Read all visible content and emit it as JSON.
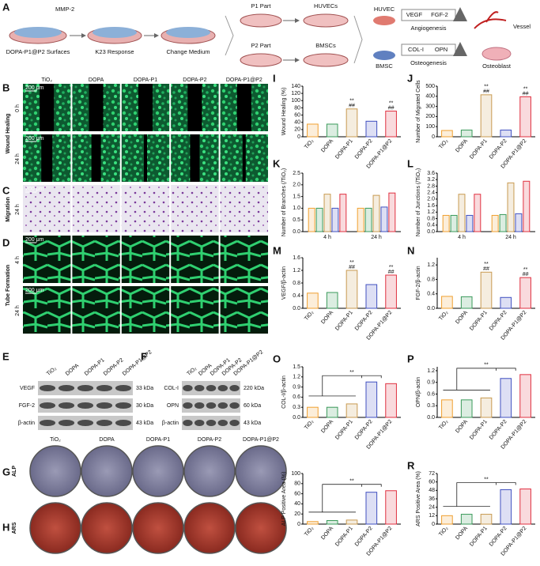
{
  "panel_letters": [
    "A",
    "B",
    "C",
    "D",
    "E",
    "F",
    "G",
    "H",
    "I",
    "J",
    "K",
    "L",
    "M",
    "N",
    "O",
    "P",
    "Q",
    "R"
  ],
  "schematic": {
    "enzyme": "MMP-2",
    "step1": "DOPA-P1@P2 Surfaces",
    "step2": "K23 Response",
    "step3": "Change Medium",
    "part1": "P1 Part",
    "part2": "P2 Part",
    "cells1": "HUVECs",
    "cells2": "BMSCs",
    "cell_a": "HUVEC",
    "factor_a1": "VEGF",
    "factor_a2": "FGF-2",
    "process_a": "Angiogenesis",
    "result_a": "Vessel",
    "cell_b": "BMSC",
    "factor_b1": "COL-I",
    "factor_b2": "OPN",
    "process_b": "Osteogenesis",
    "result_b": "Osteoblast"
  },
  "groups": [
    "TiO₂",
    "DOPA",
    "DOPA-P1",
    "DOPA-P2",
    "DOPA-P1@P2"
  ],
  "images": {
    "scale_bar": "200 μm",
    "sections": [
      {
        "label": "Wound Healing",
        "rows": [
          "0 h",
          "24 h"
        ]
      },
      {
        "label": "Migration",
        "rows": [
          "24 h"
        ]
      },
      {
        "label": "Tube Formation",
        "rows": [
          "4 h",
          "24 h"
        ]
      }
    ]
  },
  "blots": [
    {
      "rows": [
        {
          "name": "VEGF",
          "size": "33 kDa"
        },
        {
          "name": "FGF-2",
          "size": "30 kDa"
        },
        {
          "name": "β-actin",
          "size": "43 kDa"
        }
      ]
    },
    {
      "rows": [
        {
          "name": "COL-I",
          "size": "220 kDa"
        },
        {
          "name": "OPN",
          "size": "60 kDa"
        },
        {
          "name": "β-actin",
          "size": "43 kDa"
        }
      ]
    }
  ],
  "plates": {
    "rows": [
      "ALP",
      "ARS"
    ]
  },
  "colors": [
    "#f0a030",
    "#3a9a5a",
    "#c89a50",
    "#4050c0",
    "#e03040"
  ],
  "charts": [
    {
      "type": "bar",
      "ylabel": "Wound Healing (%)",
      "ylim": [
        0,
        140
      ],
      "yticks": [
        0,
        20,
        40,
        60,
        80,
        100,
        120,
        140
      ],
      "values": [
        35,
        35,
        77,
        43,
        71
      ],
      "bar_labels": [
        null,
        null,
        [
          "**",
          "##"
        ],
        null,
        [
          "**",
          "##"
        ]
      ]
    },
    {
      "type": "bar",
      "ylabel": "Number of Migrated Cells",
      "ylim": [
        0,
        500
      ],
      "yticks": [
        0,
        100,
        200,
        300,
        400,
        500
      ],
      "values": [
        62,
        66,
        415,
        66,
        395
      ],
      "bar_labels": [
        null,
        null,
        [
          "**",
          "##"
        ],
        null,
        [
          "**",
          "##"
        ]
      ]
    },
    {
      "type": "grouped",
      "ylabel": "Number of Branches (/TiO₂)",
      "ylim": [
        0,
        2.5
      ],
      "yticks": [
        {
          "value": 0,
          "label": "0.0"
        },
        0.5,
        {
          "value": 1,
          "label": "1.0"
        },
        1.5,
        {
          "value": 2,
          "label": "2.0"
        },
        2.5
      ],
      "categories": [
        "4 h",
        "24 h"
      ],
      "series": [
        {
          "values": [
            1.0,
            1.0
          ]
        },
        {
          "values": [
            1.0,
            1.0
          ]
        },
        {
          "values": [
            1.6,
            1.55
          ]
        },
        {
          "values": [
            1.0,
            1.05
          ]
        },
        {
          "values": [
            1.6,
            1.65
          ]
        }
      ]
    },
    {
      "type": "grouped",
      "ylabel": "Number of Junctions (/TiO₂)",
      "ylim": [
        0,
        3.6
      ],
      "yticks": [
        {
          "value": 0,
          "label": "0.0"
        },
        0.4,
        0.8,
        1.2,
        1.6,
        {
          "value": 2,
          "label": "2.0"
        },
        2.4,
        2.8,
        3.2,
        3.6
      ],
      "categories": [
        "4 h",
        "24 h"
      ],
      "series": [
        {
          "values": [
            1.0,
            1.0
          ]
        },
        {
          "values": [
            1.0,
            1.05
          ]
        },
        {
          "values": [
            2.3,
            3.0
          ]
        },
        {
          "values": [
            1.0,
            1.1
          ]
        },
        {
          "values": [
            2.3,
            3.1
          ]
        }
      ]
    },
    {
      "type": "bar",
      "ylabel": "VEGF/β-actin",
      "ylim": [
        0,
        1.6
      ],
      "yticks": [
        {
          "value": 0,
          "label": "0.0"
        },
        0.4,
        0.8,
        1.2,
        1.6
      ],
      "values": [
        0.48,
        0.5,
        1.2,
        0.75,
        1.05
      ],
      "bar_labels": [
        null,
        null,
        [
          "**",
          "##"
        ],
        null,
        [
          "**",
          "##"
        ]
      ]
    },
    {
      "type": "bar",
      "ylabel": "FGF-2/β-actin",
      "ylim": [
        0,
        1.4
      ],
      "yticks": [
        {
          "value": 0,
          "label": "0.0"
        },
        0.4,
        0.8,
        1.2
      ],
      "values": [
        0.33,
        0.32,
        1.0,
        0.3,
        0.85
      ],
      "bar_labels": [
        null,
        null,
        [
          "**",
          "##"
        ],
        null,
        [
          "**",
          "##"
        ]
      ]
    },
    {
      "type": "bar",
      "ylabel": "COL-I/β-actin",
      "ylim": [
        0,
        1.5
      ],
      "yticks": [
        {
          "value": 0,
          "label": "0.0"
        },
        0.3,
        0.6,
        0.9,
        1.2,
        1.5
      ],
      "values": [
        0.3,
        0.3,
        0.4,
        1.05,
        1.0
      ],
      "bracket_label": "**"
    },
    {
      "type": "bar",
      "ylabel": "OPN/β-actin",
      "ylim": [
        0,
        1.3
      ],
      "yticks": [
        {
          "value": 0,
          "label": "0.0"
        },
        0.3,
        0.6,
        0.9,
        1.2
      ],
      "values": [
        0.45,
        0.45,
        0.5,
        1.0,
        1.1
      ],
      "bracket_label": "**"
    },
    {
      "type": "bar",
      "ylabel": "ALP Positive Area (%)",
      "ylim": [
        0,
        100
      ],
      "yticks": [
        0,
        20,
        40,
        60,
        80,
        100
      ],
      "values": [
        5,
        7,
        8,
        63,
        66
      ],
      "bracket_label": "**"
    },
    {
      "type": "bar",
      "ylabel": "ARS Positive Area (%)",
      "ylim": [
        0,
        72
      ],
      "yticks": [
        0,
        12,
        24,
        36,
        48,
        60,
        72
      ],
      "values": [
        12,
        14,
        14,
        49,
        50
      ],
      "bracket_label": "**"
    }
  ]
}
